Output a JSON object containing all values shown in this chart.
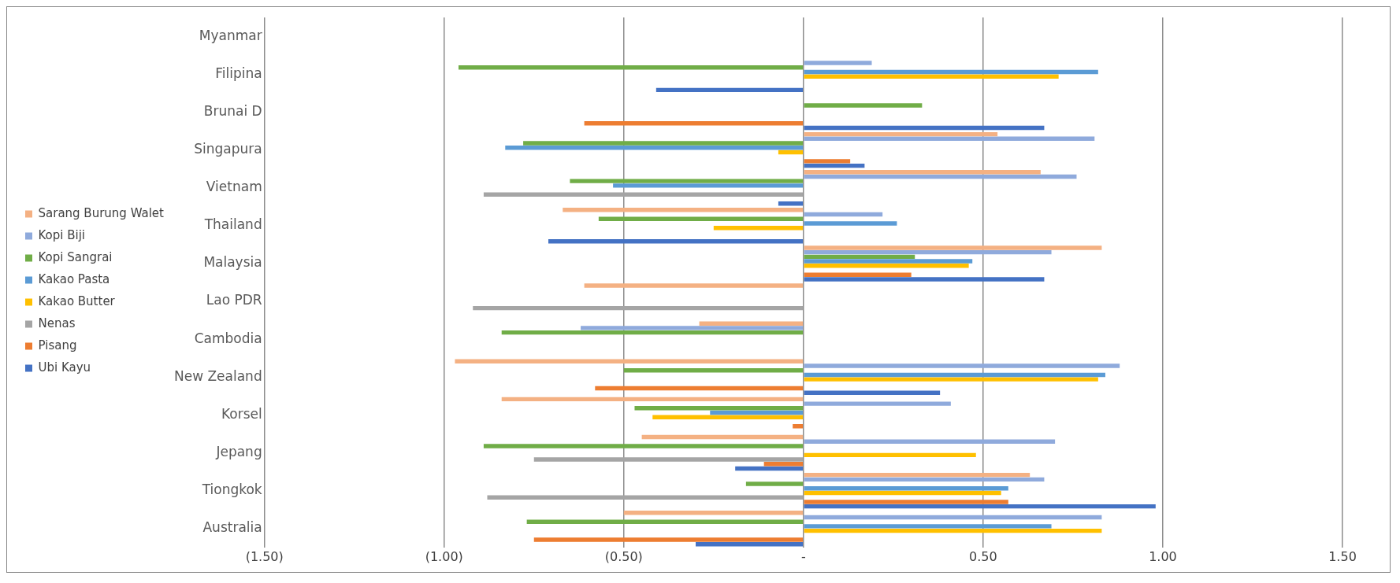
{
  "chart_data": {
    "type": "bar",
    "orientation": "horizontal",
    "categories": [
      "Myanmar",
      "Filipina",
      "Brunai D",
      "Singapura",
      "Vietnam",
      "Thailand",
      "Malaysia",
      "Lao PDR",
      "Cambodia",
      "New Zealand",
      "Korsel",
      "Jepang",
      "Tiongkok",
      "Australia"
    ],
    "series": [
      {
        "name": "Sarang Burung Walet",
        "color": "#f4b183",
        "values": [
          null,
          null,
          null,
          0.54,
          0.66,
          -0.67,
          0.83,
          -0.61,
          -0.29,
          -0.97,
          -0.84,
          -0.45,
          0.63,
          -0.5
        ]
      },
      {
        "name": "Kopi Biji",
        "color": "#8faadc",
        "values": [
          null,
          0.19,
          null,
          0.81,
          0.76,
          0.22,
          0.69,
          null,
          -0.62,
          0.88,
          0.41,
          0.7,
          0.67,
          0.83
        ]
      },
      {
        "name": "Kopi Sangrai",
        "color": "#70ad47",
        "values": [
          null,
          -0.96,
          0.33,
          -0.78,
          -0.65,
          -0.57,
          0.31,
          null,
          -0.84,
          -0.5,
          -0.47,
          -0.89,
          -0.16,
          -0.77
        ]
      },
      {
        "name": "Kakao Pasta",
        "color": "#5b9bd5",
        "values": [
          null,
          0.82,
          null,
          -0.83,
          -0.53,
          0.26,
          0.47,
          null,
          null,
          0.84,
          -0.26,
          null,
          0.57,
          0.69
        ]
      },
      {
        "name": "Kakao Butter",
        "color": "#ffc000",
        "values": [
          null,
          0.71,
          null,
          -0.07,
          null,
          -0.25,
          0.46,
          null,
          null,
          0.82,
          -0.42,
          0.48,
          0.55,
          0.83
        ]
      },
      {
        "name": "Nenas",
        "color": "#a5a5a5",
        "values": [
          null,
          null,
          null,
          null,
          -0.89,
          null,
          null,
          -0.92,
          null,
          null,
          null,
          -0.75,
          -0.88,
          null
        ]
      },
      {
        "name": "Pisang",
        "color": "#ed7d31",
        "values": [
          null,
          null,
          -0.61,
          0.13,
          null,
          null,
          0.3,
          null,
          null,
          -0.58,
          -0.03,
          -0.11,
          0.57,
          -0.75
        ]
      },
      {
        "name": "Ubi Kayu",
        "color": "#4472c4",
        "values": [
          null,
          -0.41,
          0.67,
          0.17,
          -0.07,
          -0.71,
          0.67,
          null,
          null,
          0.38,
          null,
          -0.19,
          0.98,
          -0.3
        ]
      }
    ],
    "xlim": [
      -1.5,
      1.5
    ],
    "xticks": [
      {
        "value": -1.5,
        "label": "(1.50)"
      },
      {
        "value": -1,
        "label": "(1.00)"
      },
      {
        "value": -0.5,
        "label": "(0.50)"
      },
      {
        "value": 0,
        "label": "-"
      },
      {
        "value": 0.5,
        "label": "0.50"
      },
      {
        "value": 1,
        "label": "1.00"
      },
      {
        "value": 1.5,
        "label": "1.50"
      }
    ],
    "grid": "x",
    "legend": "left"
  }
}
